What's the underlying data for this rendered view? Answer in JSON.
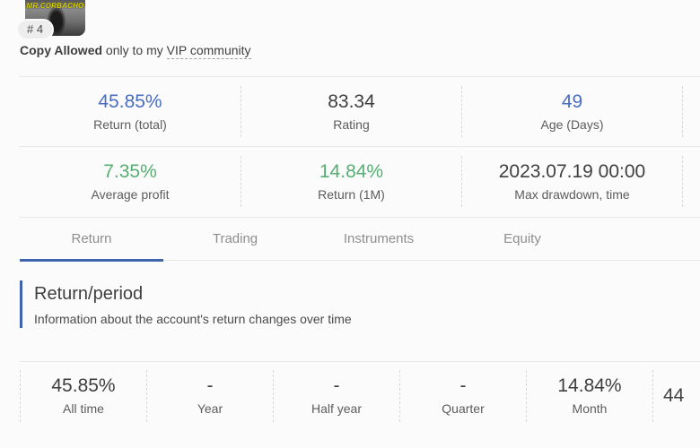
{
  "colors": {
    "blue": "#4a6cc3",
    "green": "#57ae73",
    "dark": "#3f3f3f",
    "accent": "#3e63ae"
  },
  "header": {
    "avatar_caption": "MR.CORBACHO",
    "rank_badge": "# 4",
    "copy_line": {
      "bold": "Copy Allowed",
      "middle": " only to my ",
      "underlined": "VIP community"
    }
  },
  "stats": {
    "row1": [
      {
        "value": "45.85%",
        "label": "Return (total)",
        "color": "blue"
      },
      {
        "value": "83.34",
        "label": "Rating",
        "color": "dark"
      },
      {
        "value": "49",
        "label": "Age (Days)",
        "color": "blue"
      }
    ],
    "row2": [
      {
        "value": "7.35%",
        "label": "Average profit",
        "color": "green"
      },
      {
        "value": "14.84%",
        "label": "Return (1M)",
        "color": "green"
      },
      {
        "value": "2023.07.19 00:00",
        "label": "Max drawdown, time",
        "color": "dark"
      }
    ]
  },
  "tabs": [
    {
      "label": "Return",
      "active": true
    },
    {
      "label": "Trading",
      "active": false
    },
    {
      "label": "Instruments",
      "active": false
    },
    {
      "label": "Equity",
      "active": false
    }
  ],
  "section": {
    "title": "Return/period",
    "subtitle": "Information about the account's return changes over time"
  },
  "period": [
    {
      "value": "45.85%",
      "label": "All time"
    },
    {
      "value": "-",
      "label": "Year"
    },
    {
      "value": "-",
      "label": "Half year"
    },
    {
      "value": "-",
      "label": "Quarter"
    },
    {
      "value": "14.84%",
      "label": "Month"
    },
    {
      "value": "44",
      "label": ""
    }
  ]
}
